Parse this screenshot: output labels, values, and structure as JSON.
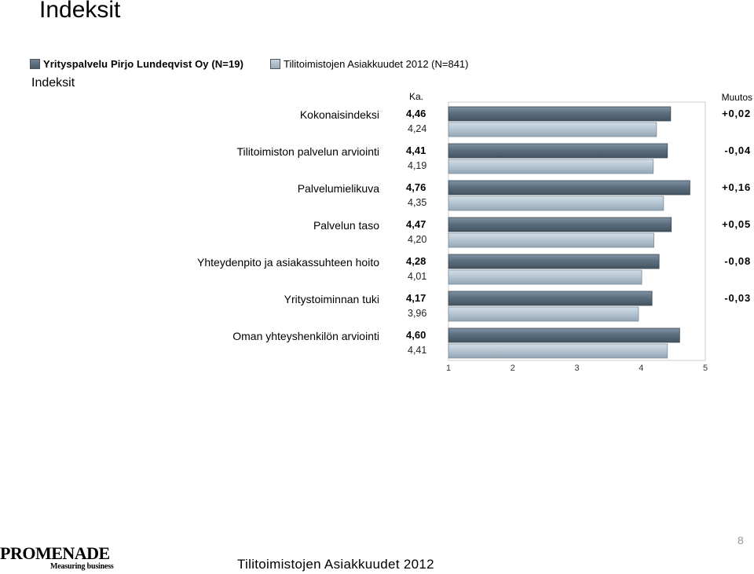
{
  "page": {
    "title": "Indeksit",
    "section_label": "Indeksit",
    "page_number": "8"
  },
  "footer": {
    "title": "Tilitoimistojen Asiakkuudet 2012",
    "logo_text": "PROMENADE",
    "logo_tagline": "Measuring business"
  },
  "colors": {
    "series_a": "#5a6d7e",
    "series_b": "#b3c3d0",
    "grid": "#e0e0e0",
    "frame": "#cccccc"
  },
  "chart_data": {
    "type": "bar",
    "orientation": "horizontal",
    "value_header": "Ka.",
    "change_header": "Muutos",
    "categories": [
      "Kokonaisindeksi",
      "Tilitoimiston palvelun arviointi",
      "Palvelumielikuva",
      "Palvelun taso",
      "Yhteydenpito ja asiakassuhteen hoito",
      "Yritystoiminnan tuki",
      "Oman yhteyshenkilön arviointi"
    ],
    "series": [
      {
        "name": "Yrityspalvelu Pirjo Lundeqvist Oy (N=19)",
        "values": [
          4.46,
          4.41,
          4.76,
          4.47,
          4.28,
          4.17,
          4.6
        ],
        "labels": [
          "4,46",
          "4,41",
          "4,76",
          "4,47",
          "4,28",
          "4,17",
          "4,60"
        ]
      },
      {
        "name": "Tilitoimistojen Asiakkuudet 2012 (N=841)",
        "values": [
          4.24,
          4.19,
          4.35,
          4.2,
          4.01,
          3.96,
          4.41
        ],
        "labels": [
          "4,24",
          "4,19",
          "4,35",
          "4,20",
          "4,01",
          "3,96",
          "4,41"
        ]
      }
    ],
    "changes": [
      "+0,02",
      "-0,04",
      "+0,16",
      "+0,05",
      "-0,08",
      "-0,03",
      ""
    ],
    "xlim": [
      1,
      5
    ],
    "xticks": [
      "1",
      "2",
      "3",
      "4",
      "5"
    ],
    "grid": false,
    "legend_position": "top-left"
  }
}
